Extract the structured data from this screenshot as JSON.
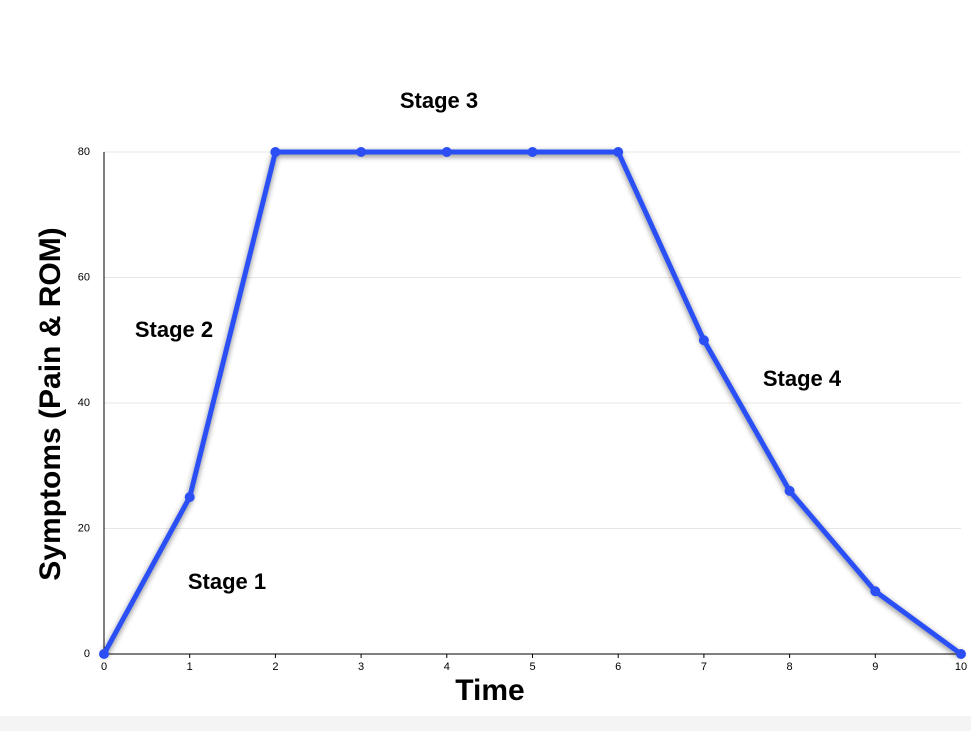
{
  "chart_data": {
    "type": "line",
    "x": [
      0,
      1,
      2,
      3,
      4,
      5,
      6,
      7,
      8,
      9,
      10
    ],
    "series": [
      {
        "color": "#2b4ff5",
        "values": [
          0,
          25,
          80,
          80,
          80,
          80,
          80,
          50,
          26,
          10,
          0
        ]
      }
    ],
    "xlabel": "Time",
    "ylabel": "Symptoms (Pain & ROM)",
    "xlim": [
      0,
      10
    ],
    "xticks": [
      0,
      1,
      2,
      3,
      4,
      5,
      6,
      7,
      8,
      9,
      10
    ],
    "ylim": [
      0,
      80
    ],
    "yticks": [
      0,
      20,
      40,
      60,
      80
    ],
    "grid": true,
    "annotations": [
      "Stage 1",
      "Stage 2",
      "Stage 3",
      "Stage 4"
    ]
  }
}
